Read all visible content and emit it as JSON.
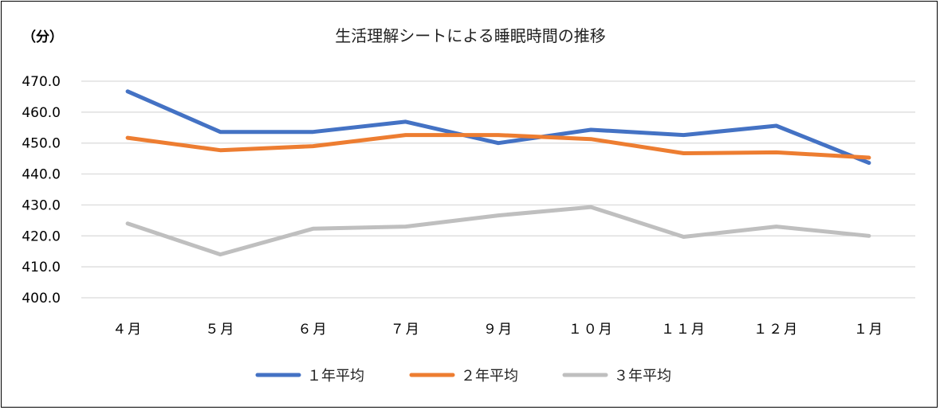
{
  "chart_data": {
    "type": "line",
    "title": "生活理解シートによる睡眠時間の推移",
    "unit_label": "（分）",
    "categories": [
      "４月",
      "５月",
      "６月",
      "７月",
      "９月",
      "１０月",
      "１１月",
      "１２月",
      "１月"
    ],
    "ylim": [
      400,
      470
    ],
    "y_ticks": [
      "400.0",
      "410.0",
      "420.0",
      "430.0",
      "440.0",
      "450.0",
      "460.0",
      "470.0"
    ],
    "grid": true,
    "legend_position": "bottom",
    "series": [
      {
        "name": "１年平均",
        "color": "#4472C4",
        "values": [
          466.7,
          453.6,
          453.6,
          456.9,
          450.0,
          454.3,
          452.6,
          455.6,
          443.6
        ]
      },
      {
        "name": "２年平均",
        "color": "#ED7D31",
        "values": [
          451.7,
          447.7,
          449.0,
          452.6,
          452.6,
          451.3,
          446.7,
          447.0,
          445.3
        ]
      },
      {
        "name": "３年平均",
        "color": "#BFBFBF",
        "values": [
          424.0,
          414.0,
          422.3,
          423.0,
          426.6,
          429.3,
          419.7,
          423.0,
          420.0
        ]
      }
    ]
  }
}
